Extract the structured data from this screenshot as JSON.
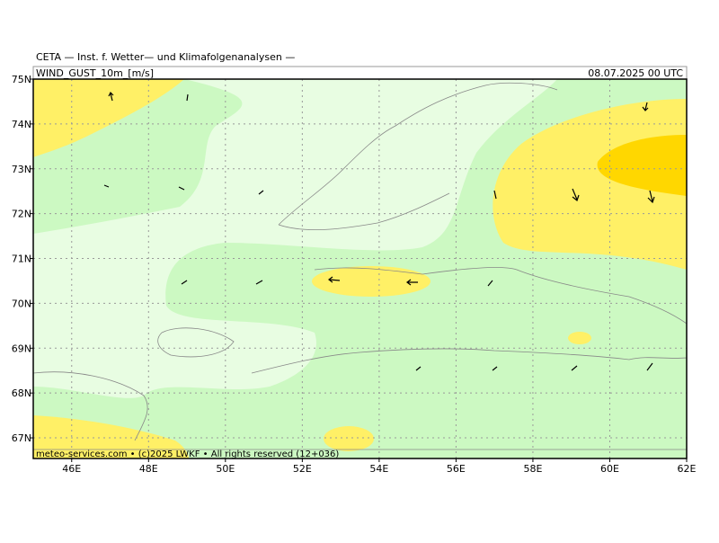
{
  "header": {
    "institute": "CETA — Inst. f. Wetter— und Klimafolgenanalysen —",
    "field": "WIND_GUST_10m_[m/s]",
    "date": "08.07.2025 00 UTC"
  },
  "map": {
    "lonlim": [
      45,
      62
    ],
    "latlim": [
      66.54,
      75
    ],
    "lonticks": [
      {
        "value": 46,
        "label": "46E"
      },
      {
        "value": 48,
        "label": "48E"
      },
      {
        "value": 50,
        "label": "50E"
      },
      {
        "value": 52,
        "label": "52E"
      },
      {
        "value": 54,
        "label": "54E"
      },
      {
        "value": 56,
        "label": "56E"
      },
      {
        "value": 58,
        "label": "58E"
      },
      {
        "value": 60,
        "label": "60E"
      },
      {
        "value": 62,
        "label": "62E"
      }
    ],
    "latticks": [
      {
        "value": 67,
        "label": "67N"
      },
      {
        "value": 68,
        "label": "68N"
      },
      {
        "value": 69,
        "label": "69N"
      },
      {
        "value": 70,
        "label": "70N"
      },
      {
        "value": 71,
        "label": "71N"
      },
      {
        "value": 72,
        "label": "72N"
      },
      {
        "value": 73,
        "label": "73N"
      },
      {
        "value": 74,
        "label": "74N"
      },
      {
        "value": 75,
        "label": "75N"
      }
    ]
  },
  "footer": "meteo-services.com • (c)2025 LWKF • All rights reserved (12+036)"
}
